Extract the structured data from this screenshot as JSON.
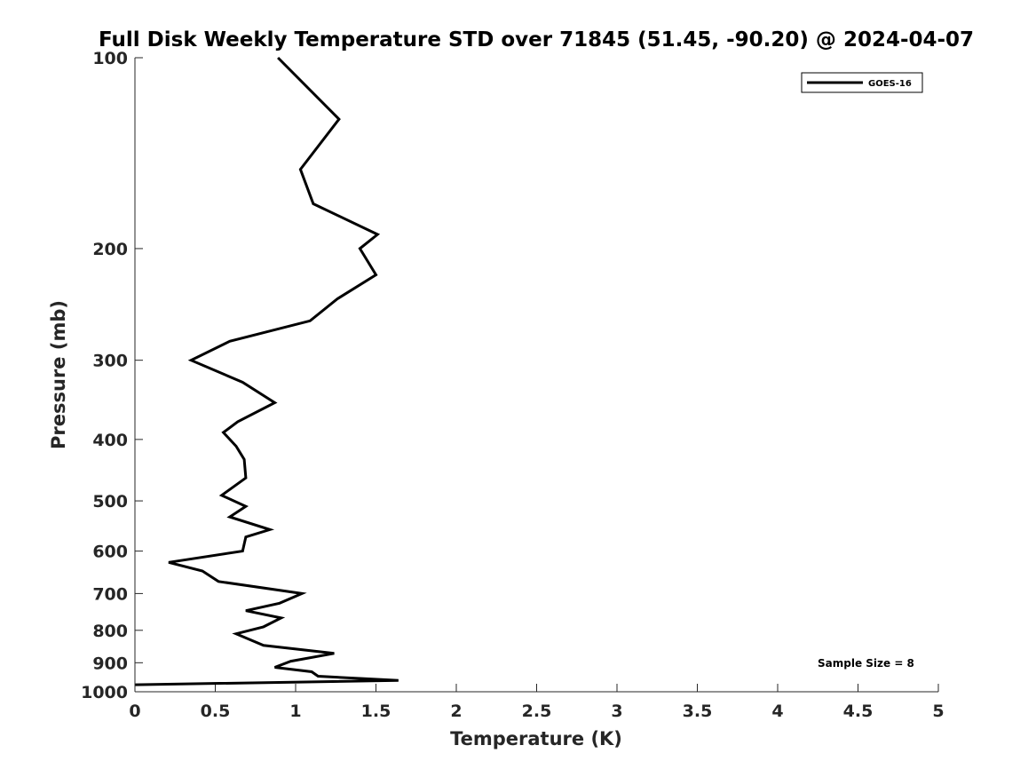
{
  "chart_data": {
    "type": "line",
    "title": "Full Disk Weekly Temperature STD over 71845 (51.45, -90.20) @ 2024-04-07",
    "xlabel": "Temperature (K)",
    "ylabel": "Pressure (mb)",
    "xlim": [
      0,
      5
    ],
    "ylim": [
      100,
      1000
    ],
    "y_scale": "log",
    "y_reversed": true,
    "x_ticks": [
      "0",
      "0.5",
      "1",
      "1.5",
      "2",
      "2.5",
      "3",
      "3.5",
      "4",
      "4.5",
      "5"
    ],
    "y_ticks": [
      "100",
      "200",
      "300",
      "400",
      "500",
      "600",
      "700",
      "800",
      "900",
      "1000"
    ],
    "grid": false,
    "legend_position": "top-right",
    "series": [
      {
        "name": "GOES-16",
        "color": "#000000",
        "x": [
          0.89,
          1.27,
          1.03,
          1.11,
          1.51,
          1.4,
          1.5,
          1.26,
          1.09,
          0.59,
          0.35,
          0.67,
          0.87,
          0.64,
          0.55,
          0.63,
          0.68,
          0.69,
          0.54,
          0.69,
          0.59,
          0.84,
          0.69,
          0.67,
          0.21,
          0.42,
          0.52,
          1.04,
          0.9,
          0.69,
          0.91,
          0.8,
          0.63,
          0.8,
          1.24,
          0.97,
          0.87,
          1.1,
          1.14,
          1.64,
          0.0
        ],
        "y": [
          100,
          125,
          150,
          170,
          190,
          200,
          220,
          240,
          260,
          280,
          300,
          325,
          350,
          375,
          390,
          410,
          430,
          460,
          490,
          510,
          530,
          555,
          570,
          600,
          625,
          645,
          670,
          700,
          725,
          745,
          765,
          790,
          810,
          845,
          870,
          895,
          915,
          930,
          945,
          960,
          975
        ]
      }
    ],
    "annotation": "Sample Size = 8"
  }
}
